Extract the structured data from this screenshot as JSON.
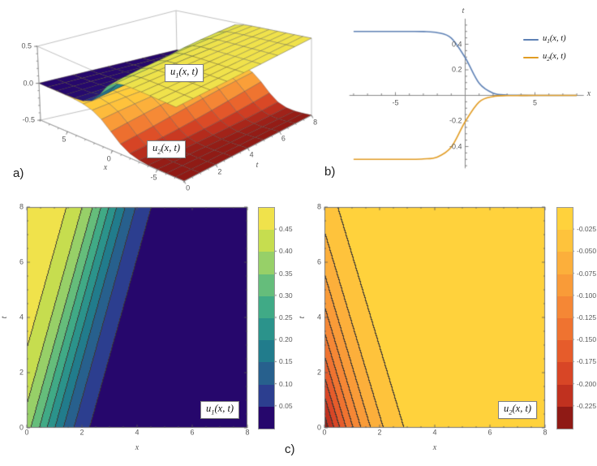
{
  "panels": {
    "a_letter": "a)",
    "b_letter": "b)",
    "c_letter": "c)"
  },
  "colors": {
    "series_u1": "#5E81B5",
    "series_u2": "#E19C24",
    "viridis_bands": [
      "#26076C",
      "#2C3E8F",
      "#27608D",
      "#217C8C",
      "#2B938B",
      "#40AA86",
      "#65BD7B",
      "#97D068",
      "#C6DD4F",
      "#F0E24B"
    ],
    "sunset_bands": [
      "#8F1A15",
      "#C0311F",
      "#D84626",
      "#E65C2B",
      "#EF7330",
      "#F58735",
      "#F99B38",
      "#FCAF3B",
      "#FEC33C",
      "#FFD23C"
    ],
    "mesh_line": "rgba(60,60,60,0.55)",
    "contour_line": "rgba(45,45,45,0.7)",
    "axis_gray": "#8a8a8a",
    "tick_gray": "#666666"
  },
  "chart_data": [
    {
      "id": "panel_a",
      "type": "surface3d",
      "xlabel": "x",
      "tlabel": "t",
      "x_range": [
        -8,
        8
      ],
      "t_range": [
        0,
        8
      ],
      "z_range": [
        -0.5,
        0.5
      ],
      "x_ticks": {
        "labels": [
          "5",
          "0",
          "-5"
        ],
        "values": [
          5,
          0,
          -5
        ],
        "minor_step": 1
      },
      "t_ticks": {
        "labels": [
          "0",
          "2",
          "4",
          "6",
          "8"
        ],
        "values": [
          0,
          2,
          4,
          6,
          8
        ],
        "minor_step": 0.5
      },
      "z_ticks": {
        "labels": [
          "0.5",
          "0.0",
          "-0.5"
        ],
        "values": [
          0.5,
          0,
          -0.5
        ],
        "minor_step": 0.1
      },
      "surfaces": [
        {
          "label": {
            "sym": "u",
            "sub": "1",
            "args": "(x, t)"
          },
          "model": {
            "amplitude": 0.25,
            "sign": 1,
            "center0": 0.75,
            "speed": 0.28,
            "width": 1.4
          },
          "colormap": "viridis_bands",
          "color_range": [
            0,
            0.5
          ]
        },
        {
          "label": {
            "sym": "u",
            "sub": "2",
            "args": "(x, t)"
          },
          "model": {
            "amplitude": 0.25,
            "sign": -1,
            "center0": -0.05,
            "speed": -0.3,
            "width": 2.0
          },
          "colormap": "sunset_bands",
          "color_range": [
            -0.5,
            0
          ]
        }
      ]
    },
    {
      "id": "panel_b",
      "type": "line",
      "xlabel": "x",
      "ylabel": "t",
      "x_range": [
        -8.3,
        8.5
      ],
      "y_range": [
        -0.57,
        0.6
      ],
      "x": [
        -8,
        -7,
        -6,
        -5,
        -4,
        -3,
        -2,
        -1,
        0,
        1,
        2,
        3,
        4,
        5,
        6,
        7,
        8
      ],
      "series": [
        {
          "label": {
            "sym": "u",
            "sub": "1",
            "args": "(x, t)"
          },
          "color_key": "series_u1",
          "values": [
            0.5,
            0.5,
            0.5,
            0.5,
            0.5,
            0.499,
            0.491,
            0.449,
            0.295,
            0.095,
            0.018,
            0.003,
            0.001,
            0,
            0,
            0,
            0
          ]
        },
        {
          "label": {
            "sym": "u",
            "sub": "2",
            "args": "(x, t)"
          },
          "color_key": "series_u2",
          "values": [
            -0.5,
            -0.5,
            -0.5,
            -0.5,
            -0.5,
            -0.497,
            -0.482,
            -0.405,
            -0.205,
            -0.051,
            -0.009,
            -0.002,
            -0.001,
            0,
            0,
            0,
            0
          ]
        }
      ],
      "x_ticks": {
        "labels": [
          "-5",
          "5"
        ],
        "values": [
          -5,
          5
        ],
        "minor_step": 1
      },
      "y_ticks": {
        "labels": [
          "0.4",
          "0.2",
          "-0.2",
          "-0.4"
        ],
        "values": [
          0.4,
          0.2,
          -0.2,
          -0.4
        ],
        "minor_step": 0.05
      }
    },
    {
      "id": "panel_c_left",
      "type": "contour",
      "xlabel": "x",
      "ylabel": "t",
      "x_range": [
        0,
        8
      ],
      "y_range": [
        0,
        8
      ],
      "x_ticks": {
        "labels": [
          "0",
          "2",
          "4",
          "6",
          "8"
        ],
        "values": [
          0,
          2,
          4,
          6,
          8
        ],
        "minor_step": 0.5
      },
      "y_ticks": {
        "labels": [
          "0",
          "2",
          "4",
          "6",
          "8"
        ],
        "values": [
          0,
          2,
          4,
          6,
          8
        ],
        "minor_step": 0.5
      },
      "levels": [
        0.05,
        0.1,
        0.15,
        0.2,
        0.25,
        0.3,
        0.35,
        0.4,
        0.45
      ],
      "colorbar_labels": [
        "0.45",
        "0.40",
        "0.35",
        "0.30",
        "0.25",
        "0.20",
        "0.15",
        "0.10",
        "0.05"
      ],
      "colormap": "viridis_bands",
      "model": {
        "amplitude": 0.25,
        "sign": 1,
        "center0": 0.75,
        "speed": 0.28,
        "width": 1.4
      },
      "box_label": {
        "sym": "u",
        "sub": "1",
        "args": "(x, t)"
      }
    },
    {
      "id": "panel_c_right",
      "type": "contour",
      "xlabel": "x",
      "ylabel": "t",
      "x_range": [
        0,
        8
      ],
      "y_range": [
        0,
        8
      ],
      "x_ticks": {
        "labels": [
          "0",
          "2",
          "4",
          "6",
          "8"
        ],
        "values": [
          0,
          2,
          4,
          6,
          8
        ],
        "minor_step": 0.5
      },
      "y_ticks": {
        "labels": [
          "0",
          "2",
          "4",
          "6",
          "8"
        ],
        "values": [
          0,
          2,
          4,
          6,
          8
        ],
        "minor_step": 0.5
      },
      "levels": [
        -0.225,
        -0.2,
        -0.175,
        -0.15,
        -0.125,
        -0.1,
        -0.075,
        -0.05,
        -0.025
      ],
      "colorbar_labels": [
        "-0.025",
        "-0.050",
        "-0.075",
        "-0.100",
        "-0.125",
        "-0.150",
        "-0.175",
        "-0.200",
        "-0.225"
      ],
      "colormap": "sunset_bands",
      "model": {
        "amplitude": 0.25,
        "sign": -1,
        "center0": -0.05,
        "speed": -0.3,
        "width": 2.0
      },
      "box_label": {
        "sym": "u",
        "sub": "2",
        "args": "(x, t)"
      }
    }
  ]
}
